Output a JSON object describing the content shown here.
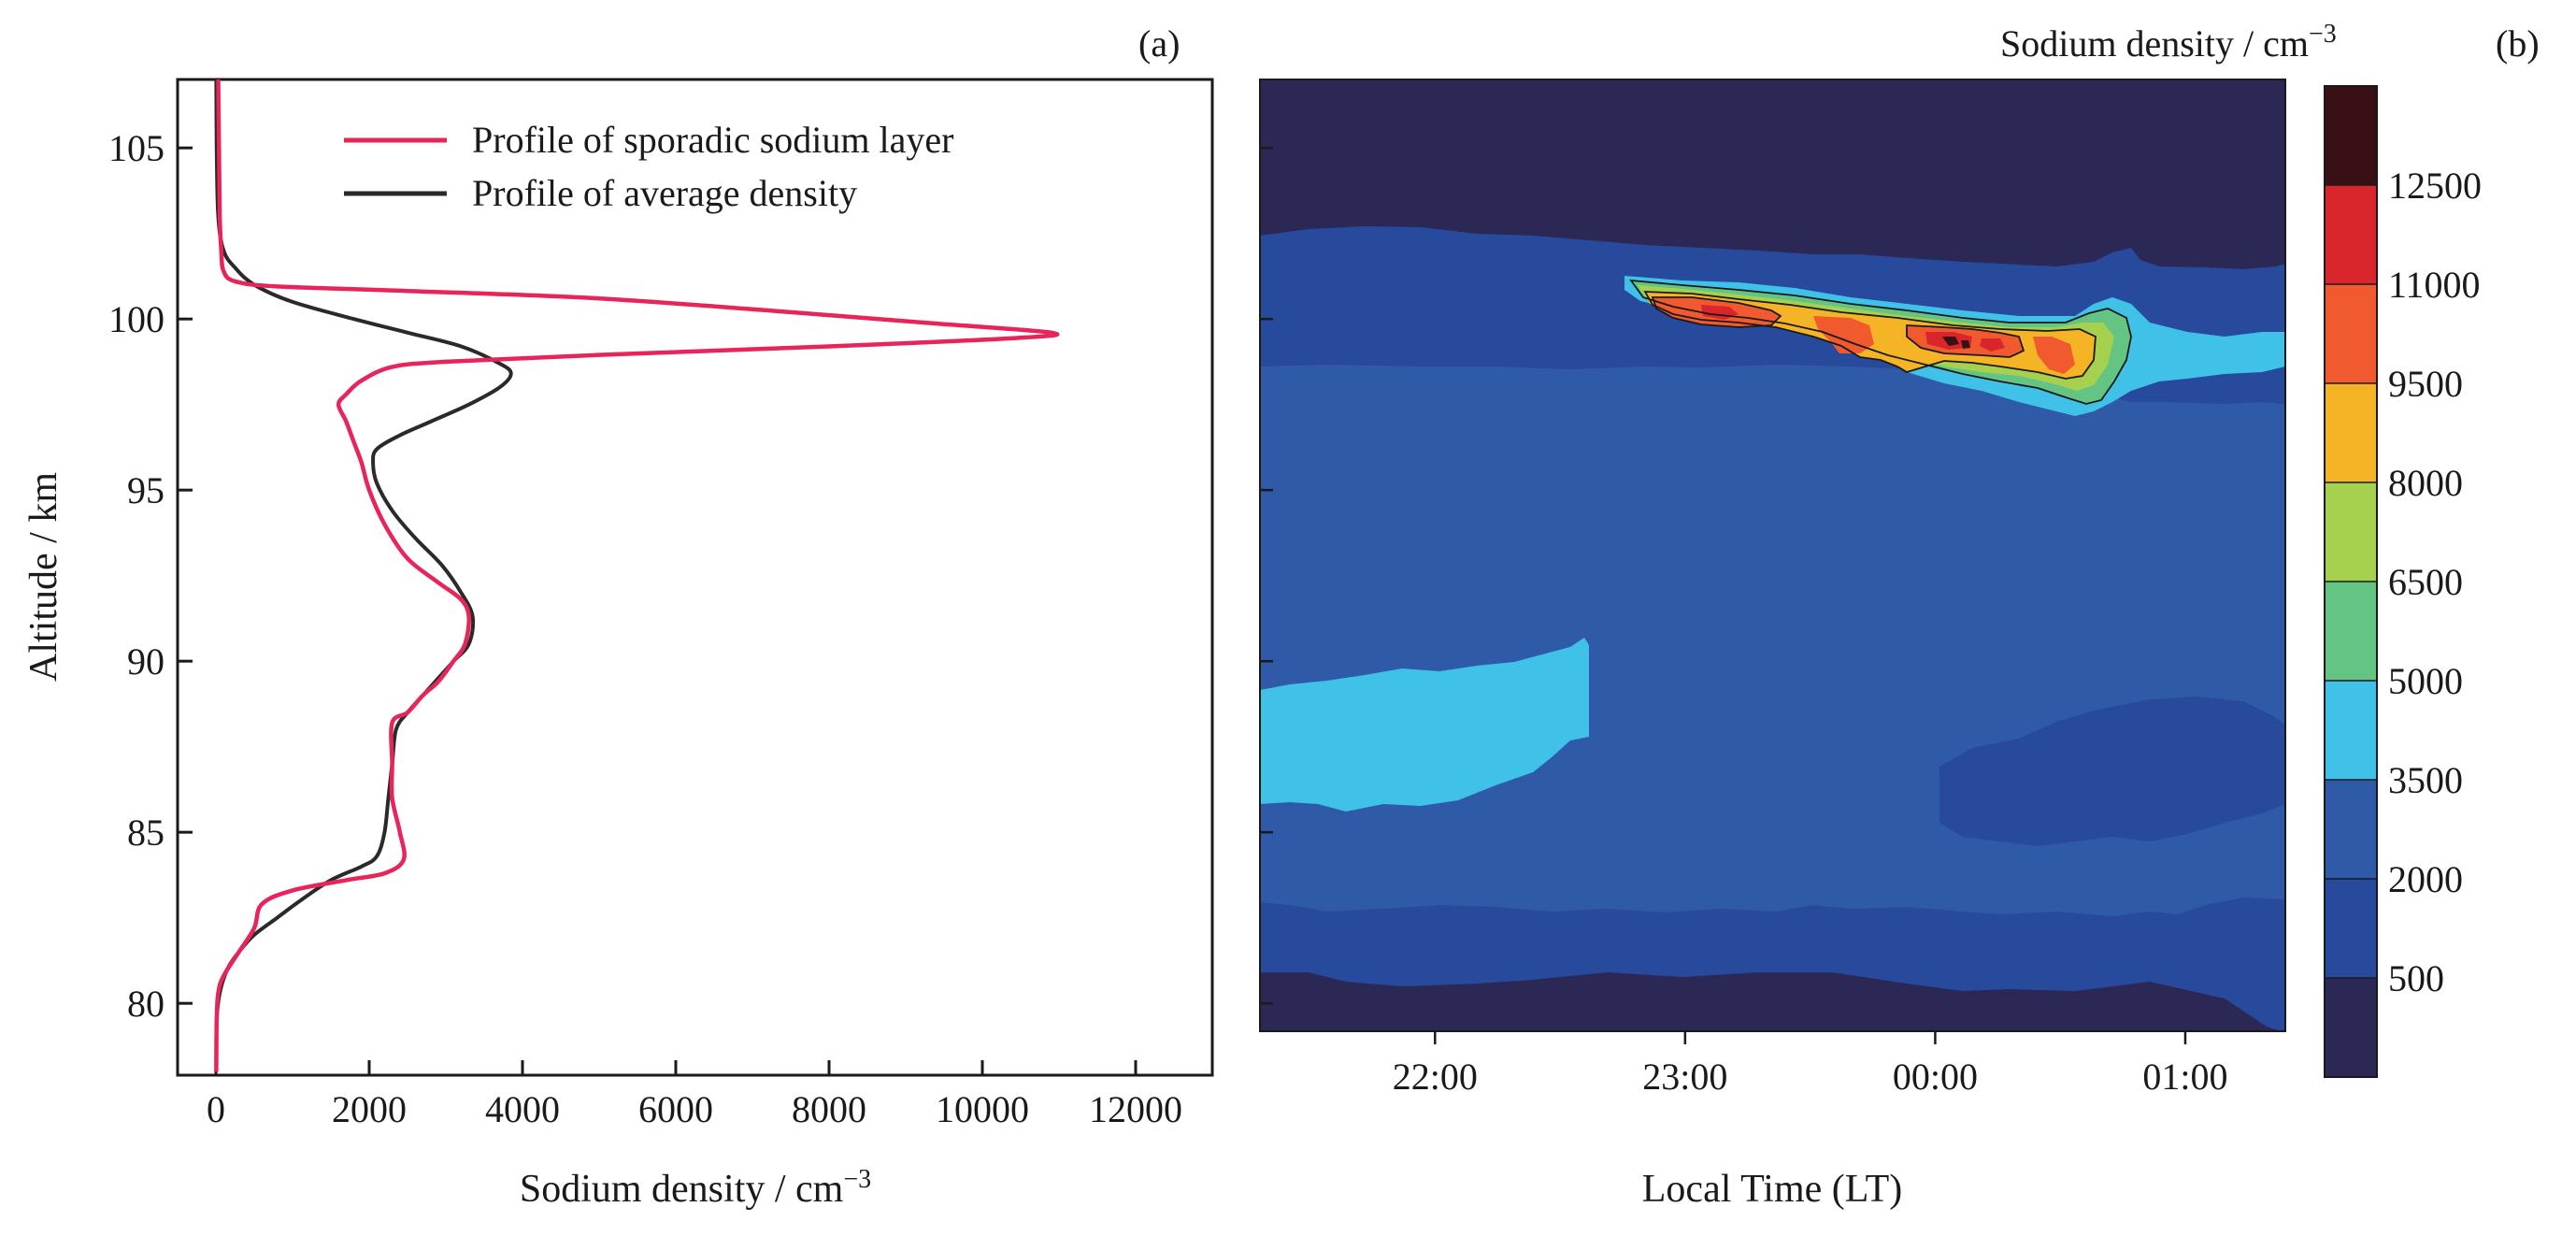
{
  "colors": {
    "sporadic_line": "#e8255a",
    "average_line": "#2a2a2a",
    "axis": "#1a1a1a",
    "background": "#ffffff"
  },
  "chart_data": [
    {
      "panel_label": "(a)",
      "type": "line",
      "xlabel": "Sodium density / cm",
      "xlabel_exponent": "−3",
      "ylabel": "Altitude / km",
      "xlim": [
        -500,
        13000
      ],
      "ylim": [
        77.9,
        107
      ],
      "xticks": [
        0,
        2000,
        4000,
        6000,
        8000,
        10000,
        12000
      ],
      "yticks": [
        80,
        85,
        90,
        95,
        100,
        105
      ],
      "grid": false,
      "legend_position": "top-right",
      "series": [
        {
          "name": "Profile of sporadic sodium layer",
          "color": "#e8255a",
          "points": [
            [
              30,
              107
            ],
            [
              40,
              105
            ],
            [
              50,
              103
            ],
            [
              70,
              102
            ],
            [
              100,
              101.4
            ],
            [
              250,
              101.1
            ],
            [
              800,
              100.95
            ],
            [
              2500,
              100.82
            ],
            [
              5000,
              100.6
            ],
            [
              7500,
              100.2
            ],
            [
              9500,
              99.85
            ],
            [
              10900,
              99.6
            ],
            [
              10500,
              99.45
            ],
            [
              8000,
              99.2
            ],
            [
              5000,
              98.95
            ],
            [
              3000,
              98.75
            ],
            [
              2300,
              98.6
            ],
            [
              1900,
              98.2
            ],
            [
              1700,
              97.8
            ],
            [
              1600,
              97.5
            ],
            [
              1700,
              97
            ],
            [
              1800,
              96.4
            ],
            [
              1900,
              95.8
            ],
            [
              2000,
              95
            ],
            [
              2200,
              94
            ],
            [
              2500,
              93
            ],
            [
              2900,
              92.3
            ],
            [
              3200,
              91.8
            ],
            [
              3300,
              91.3
            ],
            [
              3250,
              90.5
            ],
            [
              3100,
              90
            ],
            [
              2900,
              89.4
            ],
            [
              2700,
              89
            ],
            [
              2500,
              88.5
            ],
            [
              2300,
              88.2
            ],
            [
              2300,
              87
            ],
            [
              2300,
              86
            ],
            [
              2400,
              85
            ],
            [
              2450,
              84.2
            ],
            [
              2200,
              83.8
            ],
            [
              1700,
              83.6
            ],
            [
              1000,
              83.3
            ],
            [
              600,
              82.9
            ],
            [
              500,
              82.2
            ],
            [
              300,
              81.5
            ],
            [
              100,
              80.8
            ],
            [
              30,
              80.3
            ],
            [
              10,
              79.5
            ],
            [
              5,
              78
            ]
          ]
        },
        {
          "name": "Profile of average density",
          "color": "#2a2a2a",
          "points": [
            [
              5,
              107
            ],
            [
              10,
              105
            ],
            [
              30,
              103
            ],
            [
              100,
              102
            ],
            [
              250,
              101.5
            ],
            [
              500,
              101
            ],
            [
              1000,
              100.5
            ],
            [
              1800,
              100
            ],
            [
              2500,
              99.6
            ],
            [
              3200,
              99.2
            ],
            [
              3700,
              98.7
            ],
            [
              3850,
              98.4
            ],
            [
              3700,
              98
            ],
            [
              3300,
              97.5
            ],
            [
              2800,
              97
            ],
            [
              2400,
              96.6
            ],
            [
              2100,
              96.2
            ],
            [
              2050,
              95.8
            ],
            [
              2100,
              95.2
            ],
            [
              2300,
              94.4
            ],
            [
              2600,
              93.6
            ],
            [
              2950,
              92.8
            ],
            [
              3200,
              92
            ],
            [
              3350,
              91.3
            ],
            [
              3300,
              90.5
            ],
            [
              3100,
              90
            ],
            [
              2900,
              89.5
            ],
            [
              2700,
              89
            ],
            [
              2500,
              88.5
            ],
            [
              2350,
              88
            ],
            [
              2300,
              87
            ],
            [
              2250,
              86
            ],
            [
              2200,
              85
            ],
            [
              2100,
              84.3
            ],
            [
              1900,
              84
            ],
            [
              1500,
              83.6
            ],
            [
              1100,
              83
            ],
            [
              800,
              82.5
            ],
            [
              500,
              82
            ],
            [
              300,
              81.5
            ],
            [
              150,
              81
            ],
            [
              50,
              80.3
            ],
            [
              10,
              79.5
            ],
            [
              5,
              78
            ]
          ]
        }
      ]
    },
    {
      "panel_label": "(b)",
      "type": "heatmap",
      "xlabel": "Local Time (LT)",
      "colorbar_title": "Sodium density / cm",
      "colorbar_exponent": "−3",
      "xticks": [
        "22:00",
        "23:00",
        "00:00",
        "01:00"
      ],
      "xtick_hours": [
        22,
        23,
        24,
        25
      ],
      "xlim_hours": [
        21.3,
        25.4
      ],
      "ylim": [
        77.9,
        107
      ],
      "yticks": [
        80,
        85,
        90,
        95,
        100,
        105
      ],
      "colorbar": {
        "levels": [
          500,
          2000,
          3500,
          5000,
          6500,
          8000,
          9500,
          11000,
          12500
        ],
        "label_values": [
          "500",
          "2000",
          "3500",
          "5000",
          "6500",
          "8000",
          "9500",
          "11000",
          "12500"
        ],
        "colors": [
          "#2c2855",
          "#284a9c",
          "#2f5aa8",
          "#40c2e8",
          "#64c484",
          "#a6d14f",
          "#f4b425",
          "#f05a2e",
          "#d8262c",
          "#3a1017"
        ]
      }
    }
  ]
}
